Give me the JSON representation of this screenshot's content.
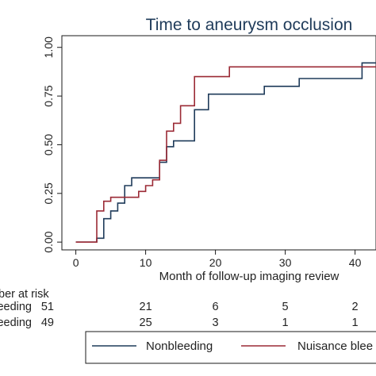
{
  "chart_data": {
    "type": "line",
    "step": true,
    "title": "Time to aneurysm occlusion",
    "xlabel": "Month of follow-up imaging review",
    "ylabel": "",
    "xlim": [
      -2,
      43
    ],
    "ylim": [
      -0.04,
      1.06
    ],
    "x_ticks": [
      0,
      10,
      20,
      30,
      40
    ],
    "x_tick_labels": [
      "0",
      "10",
      "20",
      "30",
      "40"
    ],
    "y_ticks": [
      0,
      0.25,
      0.5,
      0.75,
      1.0
    ],
    "y_tick_labels": [
      "0.00",
      "0.25",
      "0.50",
      "0.75",
      "1.00"
    ],
    "grid": false,
    "legend_position": "bottom",
    "series": [
      {
        "name": "Nonbleeding",
        "color": "#1f3b5a",
        "points": [
          [
            0,
            0
          ],
          [
            3,
            0
          ],
          [
            3,
            0.02
          ],
          [
            4,
            0.02
          ],
          [
            4,
            0.12
          ],
          [
            5,
            0.12
          ],
          [
            5,
            0.16
          ],
          [
            6,
            0.16
          ],
          [
            6,
            0.2
          ],
          [
            7,
            0.2
          ],
          [
            7,
            0.29
          ],
          [
            8,
            0.29
          ],
          [
            8,
            0.33
          ],
          [
            12,
            0.33
          ],
          [
            12,
            0.41
          ],
          [
            13,
            0.41
          ],
          [
            13,
            0.49
          ],
          [
            14,
            0.49
          ],
          [
            14,
            0.52
          ],
          [
            17,
            0.52
          ],
          [
            17,
            0.68
          ],
          [
            19,
            0.68
          ],
          [
            19,
            0.76
          ],
          [
            27,
            0.76
          ],
          [
            27,
            0.8
          ],
          [
            32,
            0.8
          ],
          [
            32,
            0.84
          ],
          [
            41,
            0.84
          ],
          [
            41,
            0.92
          ],
          [
            43,
            0.92
          ]
        ]
      },
      {
        "name": "Nuisance bleeding",
        "color": "#9b2a35",
        "points": [
          [
            0,
            0
          ],
          [
            3,
            0
          ],
          [
            3,
            0.16
          ],
          [
            4,
            0.16
          ],
          [
            4,
            0.21
          ],
          [
            5,
            0.21
          ],
          [
            5,
            0.23
          ],
          [
            9,
            0.23
          ],
          [
            9,
            0.26
          ],
          [
            10,
            0.26
          ],
          [
            10,
            0.29
          ],
          [
            11,
            0.29
          ],
          [
            11,
            0.32
          ],
          [
            12,
            0.32
          ],
          [
            12,
            0.42
          ],
          [
            13,
            0.42
          ],
          [
            13,
            0.57
          ],
          [
            14,
            0.57
          ],
          [
            14,
            0.61
          ],
          [
            15,
            0.61
          ],
          [
            15,
            0.7
          ],
          [
            17,
            0.7
          ],
          [
            17,
            0.85
          ],
          [
            22,
            0.85
          ],
          [
            22,
            0.9
          ],
          [
            43,
            0.9
          ]
        ]
      }
    ],
    "risk_table": {
      "header": "ber at risk",
      "times": [
        0,
        10,
        20,
        30,
        40
      ],
      "rows": [
        {
          "label": "nbleeding",
          "counts": [
            "51",
            "21",
            "6",
            "5",
            "2"
          ]
        },
        {
          "label": "e bleeding",
          "counts": [
            "49",
            "25",
            "3",
            "1",
            "1"
          ]
        }
      ]
    },
    "legend": [
      {
        "label": "Nonbleeding",
        "color": "#1f3b5a"
      },
      {
        "label": "Nuisance blee",
        "color": "#9b2a35"
      }
    ]
  }
}
